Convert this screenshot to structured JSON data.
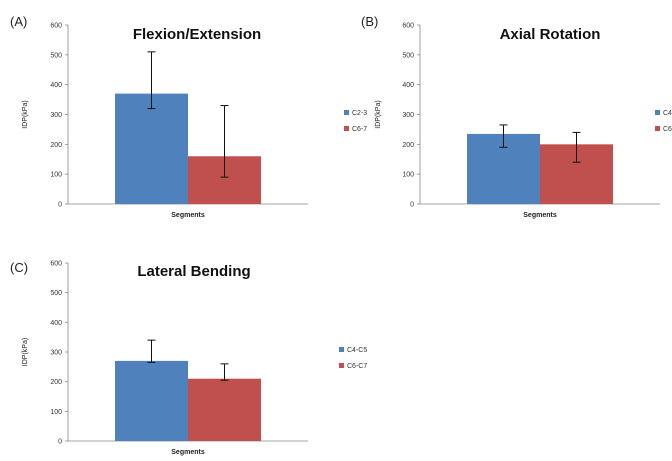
{
  "chart_data": [
    {
      "type": "bar",
      "panel": "(A)",
      "title": "Flexion/Extension",
      "xlabel": "Segments",
      "ylabel": "IDP(kPa)",
      "ylim": [
        0,
        600
      ],
      "yticks": [
        0,
        100,
        200,
        300,
        400,
        500,
        600
      ],
      "series": [
        {
          "name": "C2-3",
          "color": "#4f81bd",
          "value": 370,
          "err_low": 320,
          "err_high": 510
        },
        {
          "name": "C6-7",
          "color": "#c0504d",
          "value": 160,
          "err_low": 90,
          "err_high": 330
        }
      ]
    },
    {
      "type": "bar",
      "panel": "(B)",
      "title": "Axial Rotation",
      "xlabel": "Segments",
      "ylabel": "IDP(kPa)",
      "ylim": [
        0,
        600
      ],
      "yticks": [
        0,
        100,
        200,
        300,
        400,
        500,
        600
      ],
      "series": [
        {
          "name": "C4",
          "color": "#4f81bd",
          "value": 235,
          "err_low": 190,
          "err_high": 265
        },
        {
          "name": "C6",
          "color": "#c0504d",
          "value": 200,
          "err_low": 140,
          "err_high": 240
        }
      ]
    },
    {
      "type": "bar",
      "panel": "(C)",
      "title": "Lateral Bending",
      "xlabel": "Segments",
      "ylabel": "IDP(kPa)",
      "ylim": [
        0,
        600
      ],
      "yticks": [
        0,
        100,
        200,
        300,
        400,
        500,
        600
      ],
      "series": [
        {
          "name": "C4-C5",
          "color": "#4f81bd",
          "value": 270,
          "err_low": 265,
          "err_high": 340
        },
        {
          "name": "C6-C7",
          "color": "#c0504d",
          "value": 210,
          "err_low": 205,
          "err_high": 260
        }
      ]
    }
  ]
}
